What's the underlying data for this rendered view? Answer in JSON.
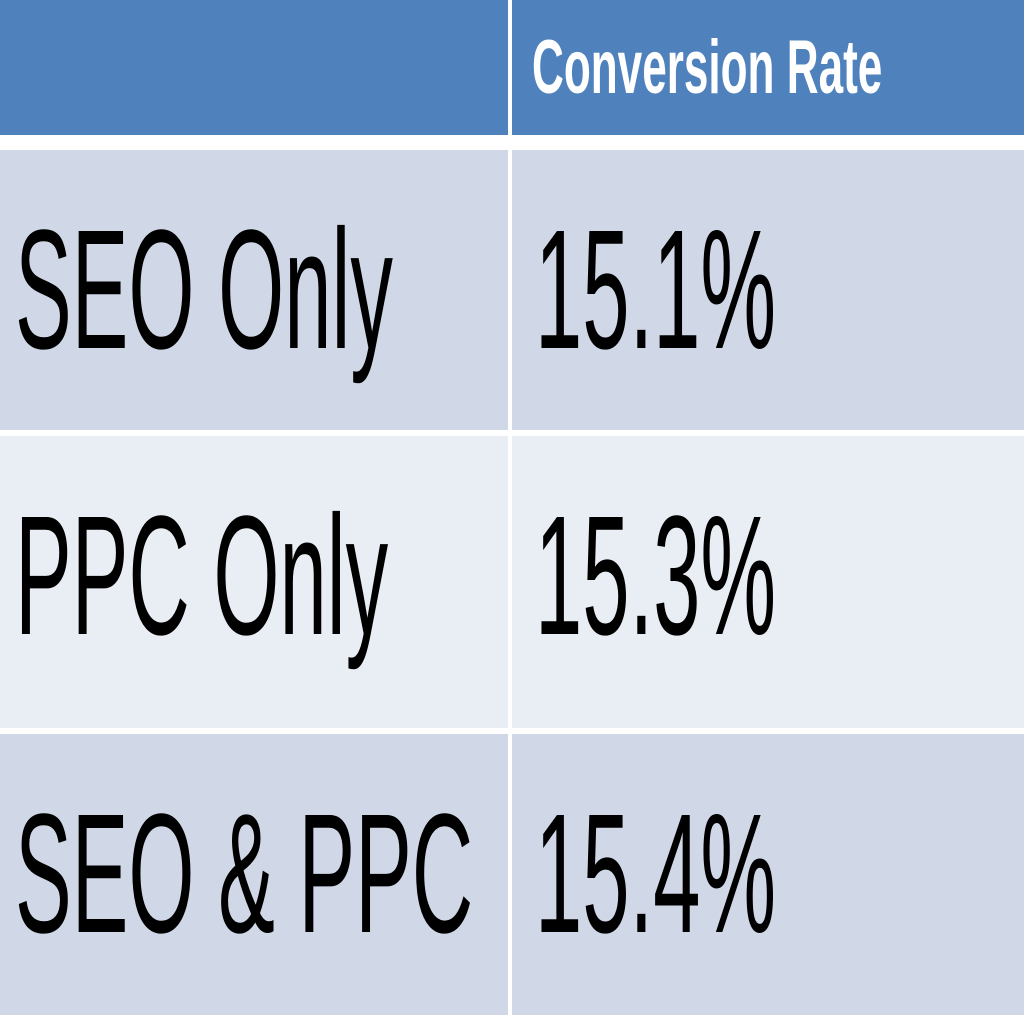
{
  "table": {
    "header": [
      "Conversion Rate"
    ],
    "rows": [
      [
        "SEO Only",
        "15.1%"
      ],
      [
        "PPC Only",
        "15.3%"
      ],
      [
        "SEO & PPC",
        "15.4%"
      ]
    ]
  }
}
